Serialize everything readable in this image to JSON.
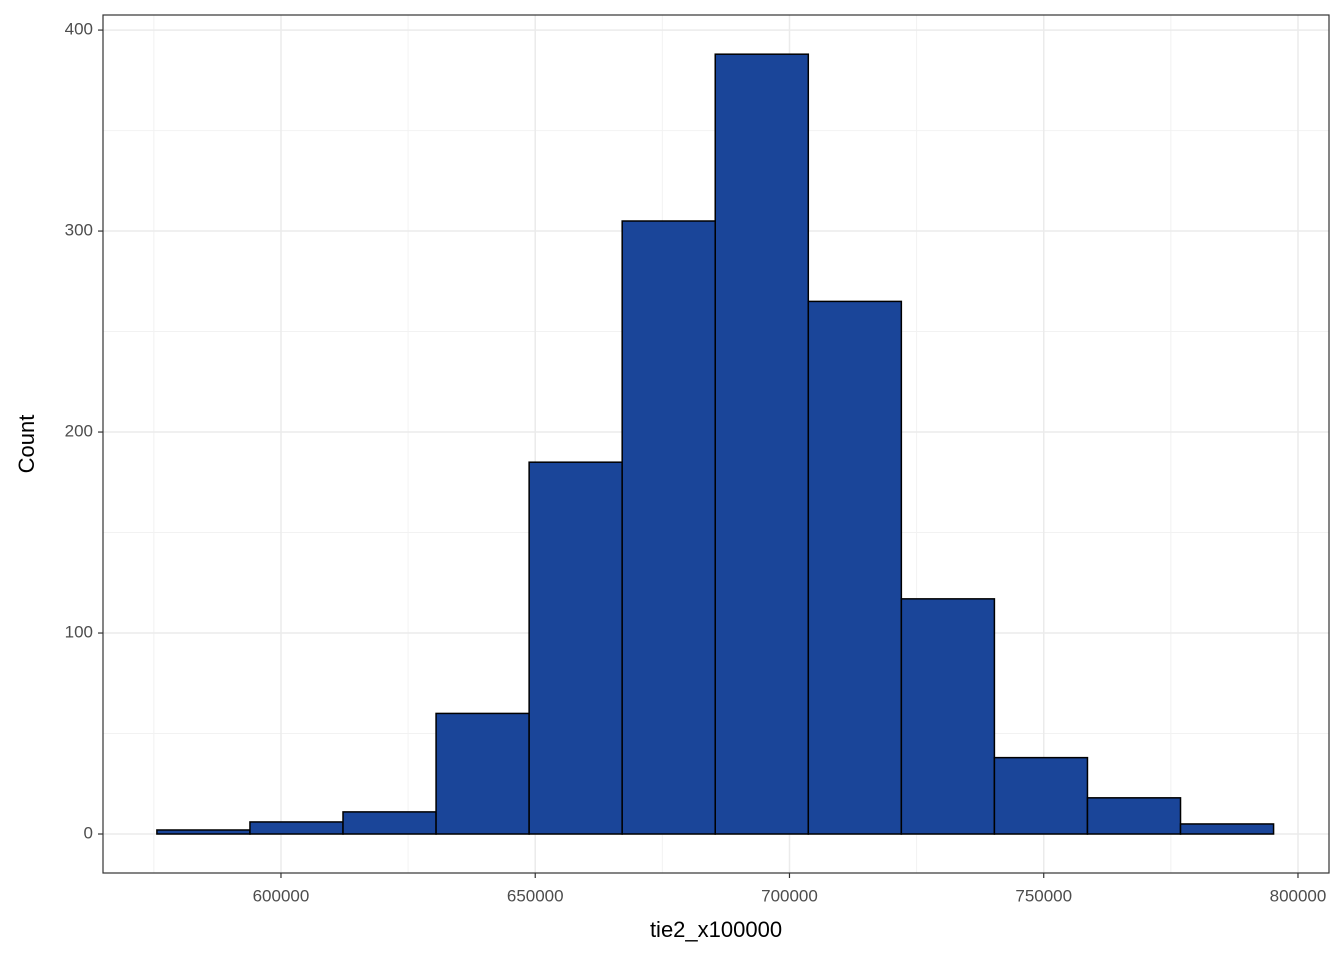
{
  "chart_data": {
    "type": "histogram",
    "x_label": "tie2_x100000",
    "y_label": "Count",
    "bins": [
      575600,
      593900,
      612200,
      630500,
      648800,
      667100,
      685400,
      703700,
      722000,
      740300,
      758600,
      776900,
      795200
    ],
    "values": [
      2,
      6,
      11,
      60,
      185,
      305,
      388,
      265,
      117,
      38,
      18,
      5
    ],
    "color": "#1a4599",
    "edge_color": "#000000",
    "xlim": [
      565000,
      806100
    ],
    "ylim": [
      -19.4,
      407.5
    ],
    "xticks": [
      600000,
      650000,
      700000,
      750000,
      800000
    ],
    "yticks": [
      0,
      100,
      200,
      300,
      400
    ],
    "grid": true,
    "minor_grid": true
  }
}
